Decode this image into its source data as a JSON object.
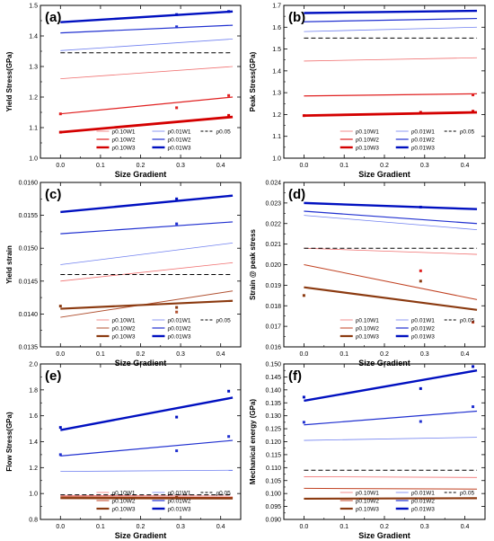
{
  "figure": {
    "legend_labels": [
      "ρ0.10W1",
      "ρ0.10W2",
      "ρ0.10W3",
      "ρ0.01W1",
      "ρ0.01W2",
      "ρ0.01W3",
      "ρ0.05"
    ],
    "series_colors": {
      "r_w1": "#f07070",
      "r_w2": "#e02020",
      "r_w3": "#d40000",
      "b_w1": "#7080f0",
      "b_w2": "#2030d0",
      "b_w3": "#0010c0",
      "ref": "#000000"
    }
  },
  "chart_data": [
    {
      "type": "line",
      "panel_label": "(a)",
      "xlabel": "Size Gradient",
      "ylabel": "Yield Stress(GPa)",
      "xlim": [
        -0.05,
        0.45
      ],
      "ylim": [
        1.0,
        1.5
      ],
      "xticks": [
        "0.0",
        "0.1",
        "0.2",
        "0.3",
        "0.4"
      ],
      "yticks": [
        "1.0",
        "1.1",
        "1.2",
        "1.3",
        "1.4",
        "1.5"
      ],
      "legend_position": "bottom-right",
      "series": [
        {
          "name": "ρ0.10W1",
          "color": "#f07070",
          "width": 0.8,
          "x": [
            0,
            0.43
          ],
          "y": [
            1.26,
            1.3
          ]
        },
        {
          "name": "ρ0.10W2",
          "color": "#e02020",
          "width": 1.2,
          "x": [
            0,
            0.43
          ],
          "y": [
            1.145,
            1.2
          ]
        },
        {
          "name": "ρ0.10W3",
          "color": "#d40000",
          "width": 2.8,
          "x": [
            0,
            0.43
          ],
          "y": [
            1.085,
            1.135
          ]
        },
        {
          "name": "ρ0.01W1",
          "color": "#7080f0",
          "width": 0.8,
          "x": [
            0,
            0.43
          ],
          "y": [
            1.352,
            1.39
          ]
        },
        {
          "name": "ρ0.01W2",
          "color": "#2030d0",
          "width": 1.2,
          "x": [
            0,
            0.43
          ],
          "y": [
            1.41,
            1.435
          ]
        },
        {
          "name": "ρ0.01W3",
          "color": "#0010c0",
          "width": 2.4,
          "x": [
            0,
            0.43
          ],
          "y": [
            1.445,
            1.48
          ]
        },
        {
          "name": "ρ0.05",
          "color": "#000000",
          "width": 1.0,
          "dashed": true,
          "x": [
            0,
            0.43
          ],
          "y": [
            1.345,
            1.345
          ]
        }
      ],
      "points": [
        {
          "x": 0.0,
          "y": 1.085,
          "color": "#d40000"
        },
        {
          "x": 0.0,
          "y": 1.145,
          "color": "#e02020"
        },
        {
          "x": 0.29,
          "y": 1.165,
          "color": "#e02020"
        },
        {
          "x": 0.42,
          "y": 1.14,
          "color": "#d40000"
        },
        {
          "x": 0.42,
          "y": 1.205,
          "color": "#e02020"
        },
        {
          "x": 0.29,
          "y": 1.47,
          "color": "#0010c0"
        },
        {
          "x": 0.42,
          "y": 1.48,
          "color": "#0010c0"
        },
        {
          "x": 0.29,
          "y": 1.43,
          "color": "#2030d0"
        }
      ]
    },
    {
      "type": "line",
      "panel_label": "(b)",
      "xlabel": "Size Gradient",
      "ylabel": "Peak Stress(GPa)",
      "xlim": [
        -0.05,
        0.45
      ],
      "ylim": [
        1.0,
        1.7
      ],
      "xticks": [
        "0.0",
        "0.1",
        "0.2",
        "0.3",
        "0.4"
      ],
      "yticks": [
        "1.0",
        "1.1",
        "1.2",
        "1.3",
        "1.4",
        "1.5",
        "1.6",
        "1.7"
      ],
      "legend_position": "bottom-right",
      "series": [
        {
          "name": "ρ0.10W1",
          "color": "#f07070",
          "width": 0.8,
          "x": [
            0,
            0.43
          ],
          "y": [
            1.445,
            1.46
          ]
        },
        {
          "name": "ρ0.10W2",
          "color": "#e02020",
          "width": 1.2,
          "x": [
            0,
            0.43
          ],
          "y": [
            1.285,
            1.295
          ]
        },
        {
          "name": "ρ0.10W3",
          "color": "#d40000",
          "width": 2.8,
          "x": [
            0,
            0.43
          ],
          "y": [
            1.195,
            1.21
          ]
        },
        {
          "name": "ρ0.01W1",
          "color": "#7080f0",
          "width": 0.8,
          "x": [
            0,
            0.43
          ],
          "y": [
            1.58,
            1.6
          ]
        },
        {
          "name": "ρ0.01W2",
          "color": "#2030d0",
          "width": 1.2,
          "x": [
            0,
            0.43
          ],
          "y": [
            1.625,
            1.64
          ]
        },
        {
          "name": "ρ0.01W3",
          "color": "#0010c0",
          "width": 2.4,
          "x": [
            0,
            0.43
          ],
          "y": [
            1.665,
            1.675
          ]
        },
        {
          "name": "ρ0.05",
          "color": "#000000",
          "width": 1.0,
          "dashed": true,
          "x": [
            0,
            0.43
          ],
          "y": [
            1.55,
            1.55
          ]
        }
      ],
      "points": [
        {
          "x": 0.0,
          "y": 1.195,
          "color": "#d40000"
        },
        {
          "x": 0.29,
          "y": 1.21,
          "color": "#d40000"
        },
        {
          "x": 0.42,
          "y": 1.215,
          "color": "#d40000"
        },
        {
          "x": 0.42,
          "y": 1.29,
          "color": "#e02020"
        }
      ]
    },
    {
      "type": "line",
      "panel_label": "(c)",
      "xlabel": "Size Gradient",
      "ylabel": "Yield strain",
      "xlim": [
        -0.05,
        0.45
      ],
      "ylim": [
        0.0135,
        0.016
      ],
      "xticks": [
        "0.0",
        "0.1",
        "0.2",
        "0.3",
        "0.4"
      ],
      "yticks": [
        "0.0135",
        "0.0140",
        "0.0145",
        "0.0150",
        "0.0155",
        "0.0160"
      ],
      "legend_position": "bottom-right",
      "series": [
        {
          "name": "ρ0.10W1",
          "color": "#f07070",
          "width": 0.8,
          "x": [
            0,
            0.43
          ],
          "y": [
            0.0145,
            0.01478
          ]
        },
        {
          "name": "ρ0.10W2",
          "color": "#b05030",
          "width": 1.0,
          "x": [
            0,
            0.43
          ],
          "y": [
            0.01395,
            0.01435
          ]
        },
        {
          "name": "ρ0.10W3",
          "color": "#8b3a10",
          "width": 2.2,
          "x": [
            0,
            0.43
          ],
          "y": [
            0.01408,
            0.0142
          ]
        },
        {
          "name": "ρ0.01W1",
          "color": "#7080f0",
          "width": 0.8,
          "x": [
            0,
            0.43
          ],
          "y": [
            0.01475,
            0.01508
          ]
        },
        {
          "name": "ρ0.01W2",
          "color": "#2030d0",
          "width": 1.2,
          "x": [
            0,
            0.43
          ],
          "y": [
            0.01522,
            0.0154
          ]
        },
        {
          "name": "ρ0.01W3",
          "color": "#0010c0",
          "width": 2.4,
          "x": [
            0,
            0.43
          ],
          "y": [
            0.01555,
            0.0158
          ]
        },
        {
          "name": "ρ0.05",
          "color": "#000000",
          "width": 1.0,
          "dashed": true,
          "x": [
            0,
            0.43
          ],
          "y": [
            0.0146,
            0.0146
          ]
        }
      ],
      "points": [
        {
          "x": 0.0,
          "y": 0.01412,
          "color": "#8b3a10"
        },
        {
          "x": 0.29,
          "y": 0.0141,
          "color": "#8b3a10"
        },
        {
          "x": 0.29,
          "y": 0.01403,
          "color": "#b05030"
        },
        {
          "x": 0.29,
          "y": 0.01537,
          "color": "#2030d0"
        },
        {
          "x": 0.29,
          "y": 0.01575,
          "color": "#0010c0"
        }
      ]
    },
    {
      "type": "line",
      "panel_label": "(d)",
      "xlabel": "Size Gradient",
      "ylabel": "Strain @ peak stress",
      "xlim": [
        -0.05,
        0.45
      ],
      "ylim": [
        0.016,
        0.024
      ],
      "xticks": [
        "0.0",
        "0.1",
        "0.2",
        "0.3",
        "0.4"
      ],
      "yticks": [
        "0.016",
        "0.017",
        "0.018",
        "0.019",
        "0.020",
        "0.021",
        "0.022",
        "0.023",
        "0.024"
      ],
      "legend_position": "bottom-right",
      "series": [
        {
          "name": "ρ0.10W1",
          "color": "#f07070",
          "width": 0.8,
          "x": [
            0,
            0.43
          ],
          "y": [
            0.0208,
            0.0205
          ]
        },
        {
          "name": "ρ0.10W2",
          "color": "#c04020",
          "width": 1.0,
          "x": [
            0,
            0.43
          ],
          "y": [
            0.02,
            0.0183
          ]
        },
        {
          "name": "ρ0.10W3",
          "color": "#8b3a10",
          "width": 2.2,
          "x": [
            0,
            0.43
          ],
          "y": [
            0.0189,
            0.0178
          ]
        },
        {
          "name": "ρ0.01W1",
          "color": "#7080f0",
          "width": 0.8,
          "x": [
            0,
            0.43
          ],
          "y": [
            0.0224,
            0.0217
          ]
        },
        {
          "name": "ρ0.01W2",
          "color": "#2030d0",
          "width": 1.2,
          "x": [
            0,
            0.43
          ],
          "y": [
            0.0226,
            0.022
          ]
        },
        {
          "name": "ρ0.01W3",
          "color": "#0010c0",
          "width": 2.4,
          "x": [
            0,
            0.43
          ],
          "y": [
            0.023,
            0.0227
          ]
        },
        {
          "name": "ρ0.05",
          "color": "#000000",
          "width": 1.0,
          "dashed": true,
          "x": [
            0,
            0.43
          ],
          "y": [
            0.0208,
            0.0208
          ]
        }
      ],
      "points": [
        {
          "x": 0.0,
          "y": 0.0185,
          "color": "#8b3a10"
        },
        {
          "x": 0.29,
          "y": 0.0192,
          "color": "#8b3a10"
        },
        {
          "x": 0.29,
          "y": 0.0197,
          "color": "#e02020"
        },
        {
          "x": 0.42,
          "y": 0.0172,
          "color": "#c04020"
        },
        {
          "x": 0.29,
          "y": 0.0228,
          "color": "#0010c0"
        }
      ]
    },
    {
      "type": "line",
      "panel_label": "(e)",
      "xlabel": "Size Gradient",
      "ylabel": "Flow Stress(GPa)",
      "xlim": [
        -0.05,
        0.45
      ],
      "ylim": [
        0.8,
        2.0
      ],
      "xticks": [
        "0.0",
        "0.1",
        "0.2",
        "0.3",
        "0.4"
      ],
      "yticks": [
        "0.8",
        "1.0",
        "1.2",
        "1.4",
        "1.6",
        "1.8",
        "2.0"
      ],
      "legend_position": "bottom-right",
      "series": [
        {
          "name": "ρ0.10W1",
          "color": "#f07070",
          "width": 0.8,
          "x": [
            0,
            0.43
          ],
          "y": [
            0.985,
            0.98
          ]
        },
        {
          "name": "ρ0.10W2",
          "color": "#c04020",
          "width": 1.0,
          "x": [
            0,
            0.43
          ],
          "y": [
            0.975,
            0.97
          ]
        },
        {
          "name": "ρ0.10W3",
          "color": "#8b3a10",
          "width": 2.2,
          "x": [
            0,
            0.43
          ],
          "y": [
            0.965,
            0.962
          ]
        },
        {
          "name": "ρ0.01W1",
          "color": "#7080f0",
          "width": 0.8,
          "x": [
            0,
            0.43
          ],
          "y": [
            1.17,
            1.18
          ]
        },
        {
          "name": "ρ0.01W2",
          "color": "#2030d0",
          "width": 1.2,
          "x": [
            0,
            0.43
          ],
          "y": [
            1.29,
            1.41
          ]
        },
        {
          "name": "ρ0.01W3",
          "color": "#0010c0",
          "width": 2.4,
          "x": [
            0,
            0.43
          ],
          "y": [
            1.49,
            1.74
          ]
        },
        {
          "name": "ρ0.05",
          "color": "#000000",
          "width": 1.0,
          "dashed": true,
          "x": [
            0,
            0.43
          ],
          "y": [
            0.99,
            0.99
          ]
        }
      ],
      "points": [
        {
          "x": 0.0,
          "y": 1.51,
          "color": "#0010c0"
        },
        {
          "x": 0.29,
          "y": 1.59,
          "color": "#0010c0"
        },
        {
          "x": 0.42,
          "y": 1.79,
          "color": "#0010c0"
        },
        {
          "x": 0.0,
          "y": 1.3,
          "color": "#2030d0"
        },
        {
          "x": 0.29,
          "y": 1.33,
          "color": "#2030d0"
        },
        {
          "x": 0.42,
          "y": 1.44,
          "color": "#2030d0"
        },
        {
          "x": 0.29,
          "y": 0.97,
          "color": "#8b3a10"
        }
      ]
    },
    {
      "type": "line",
      "panel_label": "(f)",
      "xlabel": "Size Gradient",
      "ylabel": "Mechanical energy (GPa)",
      "xlim": [
        -0.05,
        0.45
      ],
      "ylim": [
        0.09,
        0.15
      ],
      "xticks": [
        "0.0",
        "0.1",
        "0.2",
        "0.3",
        "0.4"
      ],
      "yticks": [
        "0.090",
        "0.095",
        "0.100",
        "0.105",
        "0.110",
        "0.115",
        "0.120",
        "0.125",
        "0.130",
        "0.135",
        "0.140",
        "0.145",
        "0.150"
      ],
      "legend_position": "bottom-right",
      "series": [
        {
          "name": "ρ0.10W1",
          "color": "#f07070",
          "width": 0.8,
          "x": [
            0,
            0.43
          ],
          "y": [
            0.1065,
            0.1062
          ]
        },
        {
          "name": "ρ0.10W2",
          "color": "#c04020",
          "width": 1.0,
          "x": [
            0,
            0.43
          ],
          "y": [
            0.102,
            0.1017
          ]
        },
        {
          "name": "ρ0.10W3",
          "color": "#8b3a10",
          "width": 2.2,
          "x": [
            0,
            0.43
          ],
          "y": [
            0.098,
            0.0982
          ]
        },
        {
          "name": "ρ0.01W1",
          "color": "#7080f0",
          "width": 0.8,
          "x": [
            0,
            0.43
          ],
          "y": [
            0.1205,
            0.1217
          ]
        },
        {
          "name": "ρ0.01W2",
          "color": "#2030d0",
          "width": 1.2,
          "x": [
            0,
            0.43
          ],
          "y": [
            0.1265,
            0.1318
          ]
        },
        {
          "name": "ρ0.01W3",
          "color": "#0010c0",
          "width": 2.4,
          "x": [
            0,
            0.43
          ],
          "y": [
            0.1358,
            0.1475
          ]
        },
        {
          "name": "ρ0.05",
          "color": "#000000",
          "width": 1.0,
          "dashed": true,
          "x": [
            0,
            0.43
          ],
          "y": [
            0.109,
            0.109
          ]
        }
      ],
      "points": [
        {
          "x": 0.0,
          "y": 0.1372,
          "color": "#0010c0"
        },
        {
          "x": 0.29,
          "y": 0.1405,
          "color": "#0010c0"
        },
        {
          "x": 0.42,
          "y": 0.149,
          "color": "#0010c0"
        },
        {
          "x": 0.0,
          "y": 0.1275,
          "color": "#2030d0"
        },
        {
          "x": 0.29,
          "y": 0.1278,
          "color": "#2030d0"
        },
        {
          "x": 0.42,
          "y": 0.1335,
          "color": "#2030d0"
        }
      ]
    }
  ]
}
